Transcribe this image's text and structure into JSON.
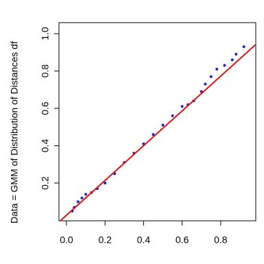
{
  "chart_data": {
    "type": "scatter",
    "y_label": "Data = GMM of Distribution of Distances df",
    "xlim": [
      -0.039,
      0.982
    ],
    "ylim": [
      -0.002,
      1.059
    ],
    "xticks": [
      {
        "value": 0,
        "label": "0.0"
      },
      0.2,
      0.4,
      0.6,
      0.8
    ],
    "yticks": [
      0.2,
      0.4,
      0.6,
      0.8,
      {
        "value": 1,
        "label": "1.0"
      }
    ],
    "series": [
      {
        "color": "#1f1fd0",
        "x": [
          0.03,
          0.04,
          0.06,
          0.08,
          0.1,
          0.13,
          0.16,
          0.2,
          0.25,
          0.3,
          0.35,
          0.4,
          0.45,
          0.5,
          0.55,
          0.6,
          0.63,
          0.66,
          0.7,
          0.72,
          0.75,
          0.78,
          0.82,
          0.86,
          0.88,
          0.92
        ],
        "values": [
          0.05,
          0.07,
          0.1,
          0.12,
          0.14,
          0.15,
          0.17,
          0.2,
          0.25,
          0.31,
          0.36,
          0.41,
          0.46,
          0.51,
          0.56,
          0.61,
          0.62,
          0.64,
          0.69,
          0.73,
          0.77,
          0.81,
          0.83,
          0.86,
          0.89,
          0.93
        ]
      },
      {
        "type": "line",
        "color": "#e01010",
        "x": [
          -0.03,
          0.98
        ],
        "values": [
          0,
          0.94
        ]
      }
    ]
  }
}
